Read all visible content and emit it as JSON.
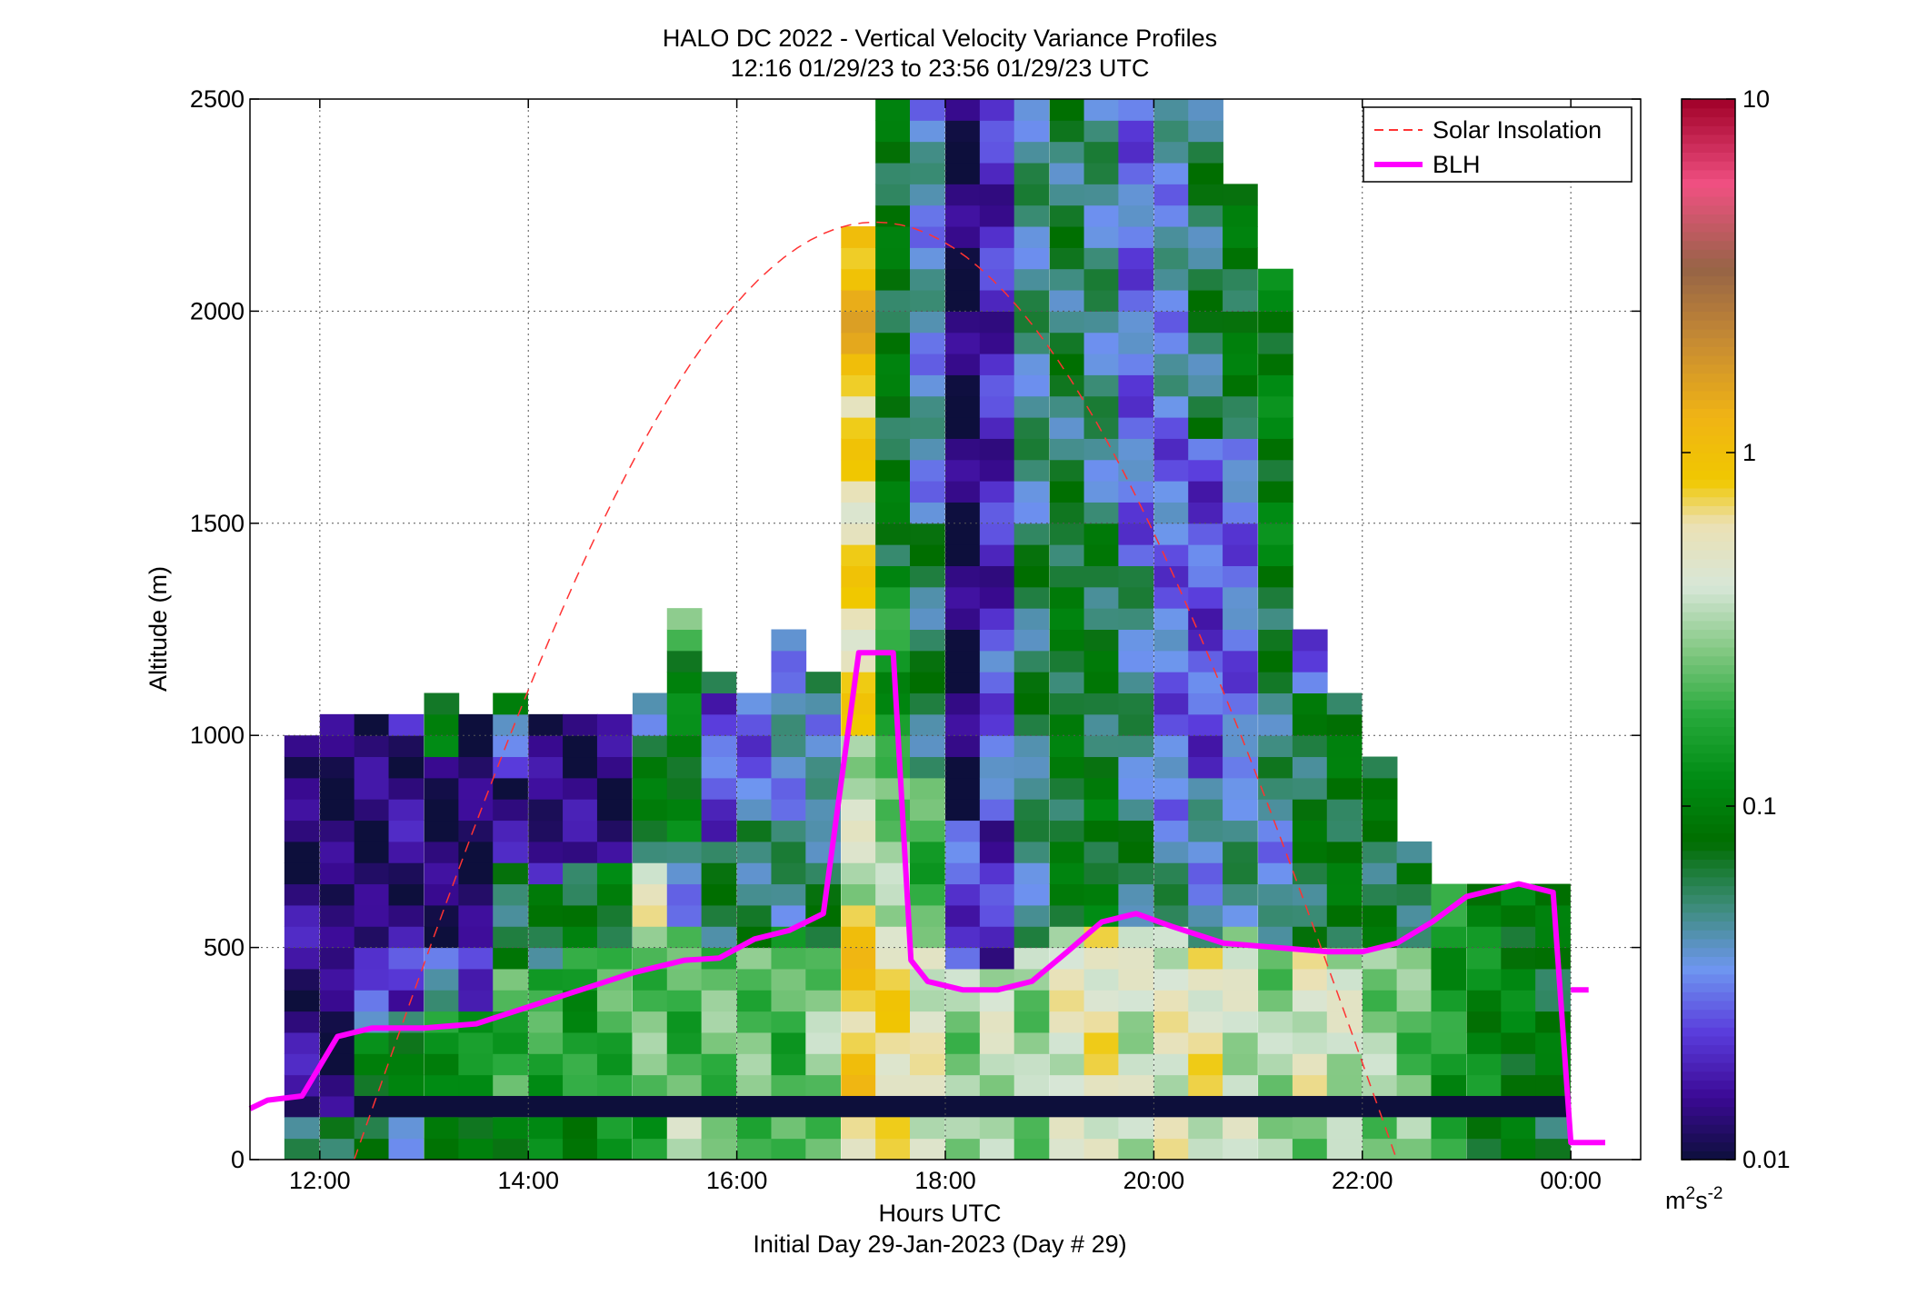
{
  "colors": {
    "blh": "#ff00ff",
    "solar": "#ff3333",
    "fill_band": "#0d0f3b",
    "grid": "#555555"
  },
  "chart_data": {
    "type": "heatmap",
    "title": "HALO DC 2022 - Vertical Velocity Variance Profiles",
    "subtitle": "12:16 01/29/23 to 23:56 01/29/23  UTC",
    "xlabel": "Hours UTC",
    "xlabel2": "Initial Day 29-Jan-2023 (Day # 29)",
    "ylabel": "Altitude (m)",
    "xlim": [
      11.33,
      24.67
    ],
    "ylim": [
      0,
      2500
    ],
    "x_ticks": [
      12,
      14,
      16,
      18,
      20,
      22,
      24
    ],
    "x_tick_labels": [
      "12:00",
      "14:00",
      "16:00",
      "18:00",
      "20:00",
      "22:00",
      "00:00"
    ],
    "y_ticks": [
      0,
      500,
      1000,
      1500,
      2000,
      2500
    ],
    "y_tick_labels": [
      "0",
      "500",
      "1000",
      "1500",
      "2000",
      "2500"
    ],
    "grid": true,
    "colorbar": {
      "scale": "log",
      "range": [
        0.01,
        10
      ],
      "tick_values": [
        0.01,
        0.1,
        1,
        10
      ],
      "tick_labels": [
        "0.01",
        "0.1",
        "1",
        "10"
      ],
      "unit_base": "m",
      "unit_exp1": "2",
      "unit_mid": "s",
      "unit_exp2": "-2"
    },
    "legend": {
      "placement": "top-right",
      "entries": [
        {
          "label": "Solar Insolation",
          "style": "dashed",
          "color": "#ff3333"
        },
        {
          "label": "BLH",
          "style": "solid",
          "color": "#ff00ff"
        }
      ]
    },
    "heatmap": {
      "x_start": 11.66,
      "x_step": 0.333,
      "y_step": 50,
      "columns": [
        {
          "x": 11.66,
          "bins": [
            [
              100,
              650,
              0.015
            ],
            [
              650,
              950,
              0.012
            ],
            [
              950,
              1000,
              0.022
            ],
            [
              0,
              100,
              0.07
            ]
          ]
        },
        {
          "x": 12.0,
          "bins": [
            [
              100,
              500,
              0.012
            ],
            [
              500,
              600,
              0.02
            ],
            [
              600,
              900,
              0.012
            ],
            [
              900,
              1050,
              0.012
            ],
            [
              0,
              100,
              0.06
            ]
          ]
        },
        {
          "x": 12.33,
          "bins": [
            [
              100,
              300,
              0.1
            ],
            [
              300,
              500,
              0.03
            ],
            [
              500,
              800,
              0.012
            ],
            [
              800,
              1050,
              0.013
            ],
            [
              0,
              100,
              0.06
            ]
          ]
        },
        {
          "x": 12.66,
          "bins": [
            [
              100,
              350,
              0.08
            ],
            [
              350,
              500,
              0.02
            ],
            [
              500,
              1000,
              0.015
            ],
            [
              1000,
              1050,
              0.02
            ],
            [
              0,
              100,
              0.05
            ]
          ]
        },
        {
          "x": 13.0,
          "bins": [
            [
              100,
              350,
              0.15
            ],
            [
              350,
              500,
              0.04
            ],
            [
              500,
              950,
              0.012
            ],
            [
              950,
              1100,
              0.09
            ],
            [
              0,
              100,
              0.07
            ]
          ]
        },
        {
          "x": 13.33,
          "bins": [
            [
              100,
              350,
              0.12
            ],
            [
              350,
              500,
              0.025
            ],
            [
              500,
              1050,
              0.012
            ],
            [
              0,
              100,
              0.1
            ]
          ]
        },
        {
          "x": 13.66,
          "bins": [
            [
              100,
              450,
              0.2
            ],
            [
              450,
              700,
              0.07
            ],
            [
              700,
              900,
              0.015
            ],
            [
              900,
              1050,
              0.03
            ],
            [
              1050,
              1100,
              0.08
            ],
            [
              0,
              100,
              0.1
            ]
          ]
        },
        {
          "x": 14.0,
          "bins": [
            [
              100,
              450,
              0.18
            ],
            [
              450,
              650,
              0.07
            ],
            [
              650,
              800,
              0.018
            ],
            [
              800,
              1050,
              0.013
            ],
            [
              0,
              100,
              0.1
            ]
          ]
        },
        {
          "x": 14.33,
          "bins": [
            [
              100,
              500,
              0.15
            ],
            [
              500,
              700,
              0.08
            ],
            [
              700,
              1050,
              0.014
            ],
            [
              0,
              100,
              0.12
            ]
          ]
        },
        {
          "x": 14.66,
          "bins": [
            [
              100,
              500,
              0.2
            ],
            [
              500,
              700,
              0.09
            ],
            [
              700,
              1050,
              0.013
            ],
            [
              0,
              100,
              0.12
            ]
          ]
        },
        {
          "x": 15.0,
          "bins": [
            [
              100,
              550,
              0.25
            ],
            [
              550,
              700,
              0.5
            ],
            [
              700,
              1000,
              0.08
            ],
            [
              1000,
              1100,
              0.05
            ],
            [
              0,
              100,
              0.15
            ]
          ]
        },
        {
          "x": 15.33,
          "bins": [
            [
              100,
              550,
              0.2
            ],
            [
              550,
              750,
              0.04
            ],
            [
              750,
              1200,
              0.1
            ],
            [
              1200,
              1300,
              0.3
            ],
            [
              0,
              100,
              0.5
            ]
          ]
        },
        {
          "x": 15.66,
          "bins": [
            [
              100,
              500,
              0.25
            ],
            [
              500,
              750,
              0.06
            ],
            [
              750,
              1100,
              0.025
            ],
            [
              1100,
              1150,
              0.08
            ],
            [
              0,
              100,
              0.2
            ]
          ]
        },
        {
          "x": 16.0,
          "bins": [
            [
              100,
              500,
              0.25
            ],
            [
              500,
              800,
              0.06
            ],
            [
              800,
              1100,
              0.03
            ],
            [
              0,
              100,
              0.25
            ]
          ]
        },
        {
          "x": 16.33,
          "bins": [
            [
              100,
              550,
              0.2
            ],
            [
              550,
              800,
              0.05
            ],
            [
              800,
              1250,
              0.04
            ],
            [
              0,
              100,
              0.2
            ]
          ]
        },
        {
          "x": 16.66,
          "bins": [
            [
              100,
              500,
              0.3
            ],
            [
              500,
              800,
              0.06
            ],
            [
              800,
              1050,
              0.04
            ],
            [
              1050,
              1150,
              0.06
            ],
            [
              0,
              100,
              0.2
            ]
          ]
        },
        {
          "x": 17.0,
          "bins": [
            [
              100,
              600,
              0.9
            ],
            [
              600,
              1000,
              0.4
            ],
            [
              1000,
              1800,
              0.7
            ],
            [
              1800,
              2200,
              1.2
            ],
            [
              0,
              100,
              0.8
            ]
          ]
        },
        {
          "x": 17.33,
          "bins": [
            [
              100,
              550,
              0.7
            ],
            [
              550,
              900,
              0.3
            ],
            [
              900,
              1400,
              0.15
            ],
            [
              1400,
              2500,
              0.08
            ],
            [
              0,
              100,
              0.6
            ]
          ]
        },
        {
          "x": 17.66,
          "bins": [
            [
              100,
              500,
              0.5
            ],
            [
              500,
              900,
              0.2
            ],
            [
              900,
              1500,
              0.06
            ],
            [
              1500,
              2500,
              0.04
            ],
            [
              0,
              100,
              0.5
            ]
          ]
        },
        {
          "x": 18.0,
          "bins": [
            [
              100,
              450,
              0.3
            ],
            [
              450,
              800,
              0.025
            ],
            [
              800,
              2500,
              0.012
            ],
            [
              0,
              100,
              0.3
            ]
          ]
        },
        {
          "x": 18.33,
          "bins": [
            [
              100,
              450,
              0.4
            ],
            [
              450,
              800,
              0.02
            ],
            [
              800,
              1200,
              0.03
            ],
            [
              1200,
              2500,
              0.02
            ],
            [
              0,
              100,
              0.3
            ]
          ]
        },
        {
          "x": 18.66,
          "bins": [
            [
              100,
              500,
              0.3
            ],
            [
              500,
              900,
              0.05
            ],
            [
              900,
              1500,
              0.06
            ],
            [
              1500,
              2500,
              0.05
            ],
            [
              0,
              100,
              0.3
            ]
          ]
        },
        {
          "x": 19.0,
          "bins": [
            [
              100,
              550,
              0.5
            ],
            [
              550,
              850,
              0.08
            ],
            [
              850,
              1500,
              0.08
            ],
            [
              1500,
              2500,
              0.06
            ],
            [
              0,
              100,
              0.4
            ]
          ]
        },
        {
          "x": 19.33,
          "bins": [
            [
              100,
              550,
              0.6
            ],
            [
              550,
              850,
              0.09
            ],
            [
              850,
              1500,
              0.07
            ],
            [
              1500,
              2500,
              0.05
            ],
            [
              0,
              100,
              0.5
            ]
          ]
        },
        {
          "x": 19.66,
          "bins": [
            [
              100,
              550,
              0.4
            ],
            [
              550,
              800,
              0.06
            ],
            [
              800,
              1400,
              0.05
            ],
            [
              1400,
              2500,
              0.03
            ],
            [
              0,
              100,
              0.4
            ]
          ]
        },
        {
          "x": 20.0,
          "bins": [
            [
              100,
              550,
              0.5
            ],
            [
              550,
              800,
              0.05
            ],
            [
              800,
              1800,
              0.03
            ],
            [
              1800,
              2500,
              0.04
            ],
            [
              0,
              100,
              0.5
            ]
          ]
        },
        {
          "x": 20.33,
          "bins": [
            [
              100,
              500,
              0.6
            ],
            [
              500,
              900,
              0.04
            ],
            [
              900,
              1700,
              0.025
            ],
            [
              1700,
              2500,
              0.06
            ],
            [
              0,
              100,
              0.5
            ]
          ]
        },
        {
          "x": 20.66,
          "bins": [
            [
              100,
              550,
              0.4
            ],
            [
              550,
              900,
              0.05
            ],
            [
              900,
              1700,
              0.03
            ],
            [
              1700,
              2300,
              0.08
            ],
            [
              0,
              100,
              0.4
            ]
          ]
        },
        {
          "x": 21.0,
          "bins": [
            [
              100,
              500,
              0.3
            ],
            [
              500,
              900,
              0.04
            ],
            [
              900,
              1300,
              0.06
            ],
            [
              1300,
              2100,
              0.1
            ],
            [
              0,
              100,
              0.3
            ]
          ]
        },
        {
          "x": 21.33,
          "bins": [
            [
              100,
              500,
              0.5
            ],
            [
              500,
              1100,
              0.07
            ],
            [
              1100,
              1250,
              0.03
            ],
            [
              0,
              100,
              0.3
            ]
          ]
        },
        {
          "x": 21.66,
          "bins": [
            [
              100,
              500,
              0.4
            ],
            [
              500,
              1100,
              0.08
            ],
            [
              0,
              100,
              0.3
            ]
          ]
        },
        {
          "x": 22.0,
          "bins": [
            [
              100,
              500,
              0.3
            ],
            [
              500,
              950,
              0.07
            ],
            [
              0,
              100,
              0.3
            ]
          ]
        },
        {
          "x": 22.33,
          "bins": [
            [
              100,
              500,
              0.25
            ],
            [
              500,
              700,
              0.07
            ],
            [
              700,
              750,
              0.035
            ],
            [
              0,
              100,
              0.3
            ]
          ]
        },
        {
          "x": 22.66,
          "bins": [
            [
              100,
              650,
              0.15
            ],
            [
              0,
              100,
              0.15
            ]
          ]
        },
        {
          "x": 23.0,
          "bins": [
            [
              100,
              650,
              0.12
            ],
            [
              0,
              100,
              0.1
            ]
          ]
        },
        {
          "x": 23.33,
          "bins": [
            [
              100,
              650,
              0.1
            ],
            [
              0,
              100,
              0.08
            ]
          ]
        },
        {
          "x": 23.66,
          "bins": [
            [
              100,
              650,
              0.08
            ],
            [
              0,
              100,
              0.07
            ]
          ]
        }
      ],
      "low_band": {
        "y0": 100,
        "y1": 150,
        "x0": 12.33,
        "x1": 24.0,
        "value": 0.01
      }
    },
    "series": [
      {
        "name": "BLH",
        "x": [
          11.33,
          11.5,
          11.83,
          12.17,
          12.5,
          13.0,
          13.5,
          14.0,
          14.5,
          15.0,
          15.5,
          15.83,
          16.17,
          16.5,
          16.83,
          17.17,
          17.5,
          17.67,
          17.83,
          18.17,
          18.5,
          18.83,
          19.17,
          19.5,
          19.83,
          20.17,
          20.67,
          21.17,
          21.67,
          22.0,
          22.33,
          22.67,
          23.0,
          23.5,
          23.83,
          24.0,
          24.33
        ],
        "y": [
          120,
          140,
          150,
          290,
          310,
          310,
          320,
          360,
          400,
          440,
          470,
          475,
          520,
          540,
          580,
          1195,
          1195,
          470,
          420,
          400,
          400,
          420,
          490,
          560,
          580,
          550,
          510,
          500,
          490,
          490,
          510,
          560,
          620,
          650,
          630,
          40,
          40
        ]
      },
      {
        "name": "BLH_right",
        "x": [
          24.0,
          24.17
        ],
        "y": [
          400,
          400
        ]
      },
      {
        "name": "Solar Insolation",
        "peak_x": 17.33,
        "peak_y": 2210,
        "start_x": 12.33,
        "end_x": 22.33,
        "base_y": 0
      }
    ]
  }
}
